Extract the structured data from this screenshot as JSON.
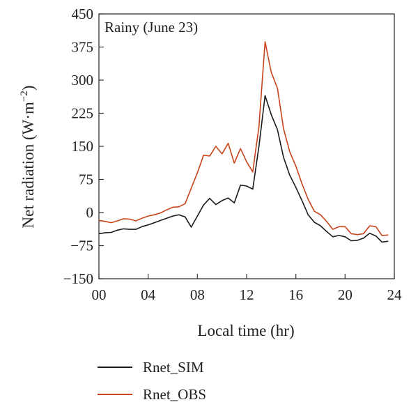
{
  "chart_data": {
    "type": "line",
    "annotation": "Rainy (June 23)",
    "xlabel": "Local time (hr)",
    "ylabel": "Net radiation (W·m",
    "ylabel_sup": "−2",
    "ylabel_close": ")",
    "xlim": [
      0,
      24
    ],
    "ylim": [
      -150,
      450
    ],
    "x_ticks": [
      0,
      4,
      8,
      12,
      16,
      20,
      24
    ],
    "x_tick_labels": [
      "00",
      "04",
      "08",
      "12",
      "16",
      "20",
      "24"
    ],
    "y_ticks": [
      450,
      375,
      300,
      225,
      150,
      75,
      0,
      -75,
      -150
    ],
    "y_tick_labels": [
      "450",
      "375",
      "300",
      "225",
      "150",
      "75",
      "0",
      "−75",
      "−150"
    ],
    "grid": false,
    "legend_position": "bottom-left, below plot",
    "series": [
      {
        "name": "Rnet_SIM",
        "color": "#1a1a1a",
        "x": [
          0,
          0.5,
          1,
          1.5,
          2,
          2.5,
          3,
          3.5,
          4,
          4.5,
          5,
          5.5,
          6,
          6.5,
          7,
          7.5,
          8,
          8.5,
          9,
          9.5,
          10,
          10.5,
          11,
          11.5,
          12,
          12.5,
          13,
          13.5,
          14,
          14.5,
          15,
          15.5,
          16,
          16.5,
          17,
          17.5,
          18,
          18.5,
          19,
          19.5,
          20,
          20.5,
          21,
          21.5,
          22,
          22.5,
          23,
          23.5
        ],
        "y": [
          -48,
          -46,
          -45,
          -40,
          -37,
          -38,
          -38,
          -32,
          -28,
          -23,
          -18,
          -13,
          -8,
          -5,
          -10,
          -33,
          -8,
          17,
          32,
          18,
          27,
          33,
          22,
          62,
          60,
          53,
          150,
          265,
          222,
          188,
          125,
          85,
          57,
          27,
          -5,
          -22,
          -30,
          -43,
          -55,
          -52,
          -55,
          -64,
          -63,
          -58,
          -47,
          -53,
          -67,
          -65
        ]
      },
      {
        "name": "Rnet_OBS",
        "color": "#c8431a",
        "x": [
          0,
          0.5,
          1,
          1.5,
          2,
          2.5,
          3,
          3.5,
          4,
          4.5,
          5,
          5.5,
          6,
          6.5,
          7,
          7.5,
          8,
          8.5,
          9,
          9.5,
          10,
          10.5,
          11,
          11.5,
          12,
          12.5,
          13,
          13.5,
          14,
          14.5,
          15,
          15.5,
          16,
          16.5,
          17,
          17.5,
          18,
          18.5,
          19,
          19.5,
          20,
          20.5,
          21,
          21.5,
          22,
          22.5,
          23,
          23.5
        ],
        "y": [
          -18,
          -20,
          -23,
          -19,
          -14,
          -15,
          -19,
          -13,
          -8,
          -5,
          -1,
          6,
          12,
          13,
          20,
          55,
          90,
          130,
          128,
          150,
          133,
          157,
          112,
          145,
          115,
          92,
          195,
          387,
          318,
          282,
          190,
          138,
          105,
          65,
          30,
          3,
          -5,
          -20,
          -38,
          -32,
          -32,
          -48,
          -50,
          -48,
          -30,
          -32,
          -52,
          -51
        ]
      }
    ]
  }
}
